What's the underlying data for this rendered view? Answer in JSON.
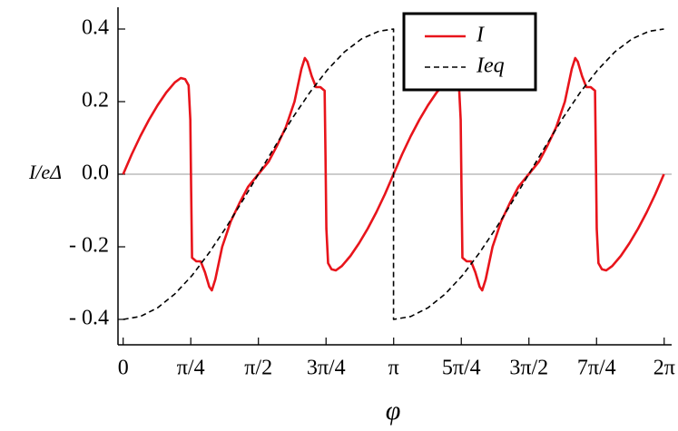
{
  "chart_data": {
    "type": "line",
    "xlabel": "φ",
    "ylabel": "I/eΔ",
    "xlim": [
      -0.06,
      6.37
    ],
    "ylim": [
      -0.47,
      0.46
    ],
    "xticks": [
      0,
      {
        "value": 0.7854,
        "label": "π/4"
      },
      {
        "value": 1.5708,
        "label": "π/2"
      },
      {
        "value": 2.3562,
        "label": "3π/4"
      },
      {
        "value": 3.1416,
        "label": "π"
      },
      {
        "value": 3.927,
        "label": "5π/4"
      },
      {
        "value": 4.7124,
        "label": "3π/2"
      },
      {
        "value": 5.4978,
        "label": "7π/4"
      },
      {
        "value": 6.2832,
        "label": "2π"
      }
    ],
    "yticks": [
      {
        "value": -0.4,
        "label": "- 0.4"
      },
      {
        "value": -0.2,
        "label": "- 0.2"
      },
      {
        "value": 0,
        "label": "0.0"
      },
      0.2,
      0.4
    ],
    "legend": "upper-center",
    "series": [
      {
        "name": "I",
        "color": "#e8141b",
        "dash": "solid",
        "x": [
          0.0,
          0.1,
          0.2,
          0.3,
          0.4,
          0.5,
          0.6,
          0.67,
          0.72,
          0.76,
          0.78,
          0.79,
          0.8,
          0.85,
          0.9,
          0.95,
          1.0,
          1.03,
          1.07,
          1.15,
          1.25,
          1.35,
          1.45,
          1.57,
          1.69,
          1.79,
          1.89,
          1.99,
          2.07,
          2.11,
          2.14,
          2.19,
          2.24,
          2.29,
          2.34,
          2.35,
          2.36,
          2.38,
          2.42,
          2.47,
          2.54,
          2.64,
          2.74,
          2.84,
          2.94,
          3.04,
          3.14,
          3.24,
          3.34,
          3.44,
          3.54,
          3.64,
          3.74,
          3.81,
          3.86,
          3.9,
          3.92,
          3.93,
          3.94,
          3.99,
          4.04,
          4.09,
          4.14,
          4.17,
          4.21,
          4.29,
          4.39,
          4.49,
          4.59,
          4.71,
          4.83,
          4.93,
          5.03,
          5.13,
          5.21,
          5.25,
          5.28,
          5.33,
          5.38,
          5.43,
          5.48,
          5.49,
          5.5,
          5.52,
          5.56,
          5.61,
          5.68,
          5.78,
          5.88,
          5.98,
          6.08,
          6.18,
          6.28
        ],
        "values": [
          0.0,
          0.055,
          0.105,
          0.15,
          0.19,
          0.225,
          0.253,
          0.265,
          0.262,
          0.245,
          0.15,
          -0.05,
          -0.23,
          -0.24,
          -0.24,
          -0.27,
          -0.31,
          -0.32,
          -0.29,
          -0.2,
          -0.13,
          -0.08,
          -0.035,
          0.0,
          0.035,
          0.08,
          0.13,
          0.2,
          0.29,
          0.32,
          0.31,
          0.27,
          0.24,
          0.24,
          0.23,
          0.05,
          -0.15,
          -0.245,
          -0.262,
          -0.265,
          -0.253,
          -0.225,
          -0.19,
          -0.15,
          -0.105,
          -0.055,
          0.0,
          0.055,
          0.105,
          0.15,
          0.19,
          0.225,
          0.253,
          0.265,
          0.262,
          0.245,
          0.15,
          -0.05,
          -0.23,
          -0.24,
          -0.24,
          -0.27,
          -0.31,
          -0.32,
          -0.29,
          -0.2,
          -0.13,
          -0.08,
          -0.035,
          0.0,
          0.035,
          0.08,
          0.13,
          0.2,
          0.29,
          0.32,
          0.31,
          0.27,
          0.24,
          0.24,
          0.23,
          0.05,
          -0.15,
          -0.245,
          -0.262,
          -0.265,
          -0.253,
          -0.225,
          -0.19,
          -0.15,
          -0.105,
          -0.055,
          0.0
        ]
      },
      {
        "name": "Ieq",
        "color": "#000000",
        "dash": "dashed",
        "x": [
          0.0,
          0.2,
          0.4,
          0.6,
          0.8,
          1.0,
          1.2,
          1.4,
          1.57,
          1.77,
          1.97,
          2.17,
          2.37,
          2.57,
          2.77,
          2.97,
          3.14,
          3.14,
          3.34,
          3.54,
          3.74,
          3.94,
          4.14,
          4.34,
          4.54,
          4.71,
          4.91,
          5.11,
          5.31,
          5.51,
          5.71,
          5.91,
          6.11,
          6.28
        ],
        "values": [
          -0.4,
          -0.392,
          -0.368,
          -0.33,
          -0.279,
          -0.216,
          -0.145,
          -0.068,
          0.0,
          0.079,
          0.156,
          0.226,
          0.287,
          0.337,
          0.373,
          0.394,
          0.4,
          -0.4,
          -0.392,
          -0.368,
          -0.33,
          -0.279,
          -0.216,
          -0.145,
          -0.068,
          0.0,
          0.079,
          0.156,
          0.226,
          0.287,
          0.337,
          0.373,
          0.394,
          0.4
        ]
      }
    ]
  }
}
